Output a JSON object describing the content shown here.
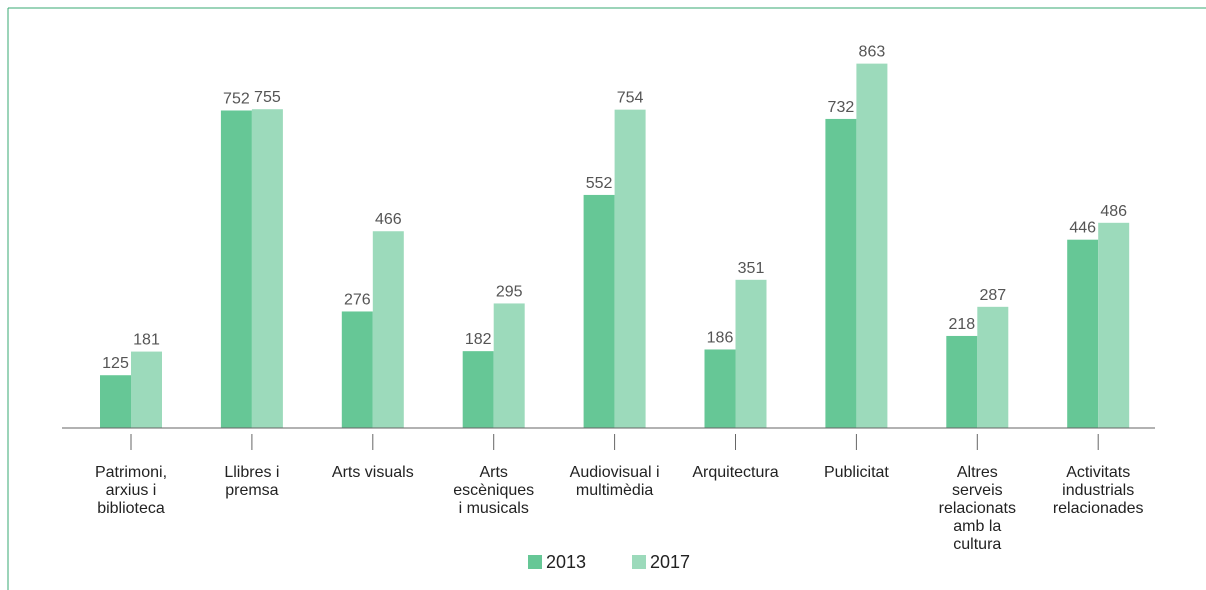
{
  "chart_data": {
    "type": "bar",
    "categories": [
      [
        "Patrimoni,",
        "arxius i",
        "biblioteca"
      ],
      [
        "Llibres i",
        "premsa"
      ],
      [
        "Arts visuals"
      ],
      [
        "Arts",
        "escèniques",
        "i musicals"
      ],
      [
        "Audiovisual i",
        "multimèdia"
      ],
      [
        "Arquitectura"
      ],
      [
        "Publicitat"
      ],
      [
        "Altres",
        "serveis",
        "relacionats",
        "amb la",
        "cultura"
      ],
      [
        "Activitats",
        "industrials",
        "relacionades"
      ]
    ],
    "series": [
      {
        "name": "2013",
        "color": "#66c796",
        "values": [
          125,
          752,
          276,
          182,
          552,
          186,
          732,
          218,
          446
        ]
      },
      {
        "name": "2017",
        "color": "#9cdabb",
        "values": [
          181,
          755,
          466,
          295,
          754,
          351,
          863,
          287,
          486
        ]
      }
    ],
    "ylim": [
      0,
      900
    ],
    "grid": false,
    "legend_position": "bottom-center"
  },
  "frame_color": "#3aa873",
  "axis_color": "#666666"
}
